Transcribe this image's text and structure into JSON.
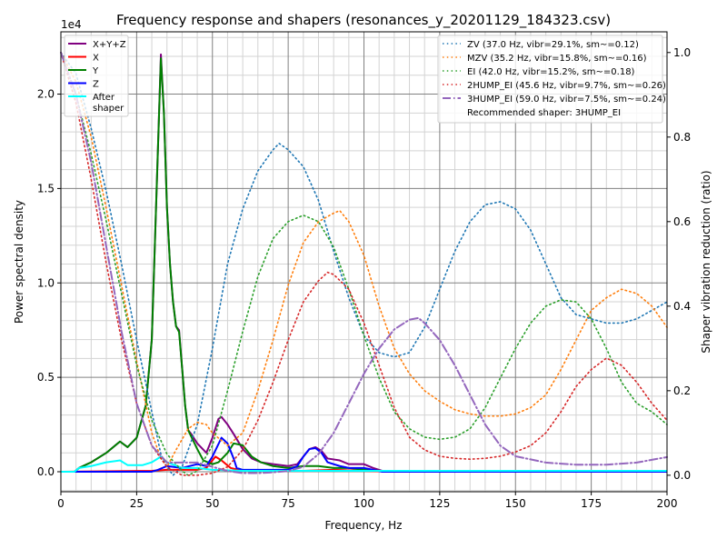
{
  "chart_data": {
    "type": "line",
    "title": "Frequency response and shapers (resonances_y_20201129_184323.csv)",
    "xlabel": "Frequency, Hz",
    "ylabel": "Power spectral density",
    "ylabel_right": "Shaper vibration reduction (ratio)",
    "y_offset_label": "1e4",
    "xlim": [
      0,
      200
    ],
    "ylim": [
      -0.106,
      2.33
    ],
    "ylim_right": [
      -0.039,
      1.049
    ],
    "grid": true,
    "x_ticks": [
      "0",
      "25",
      "50",
      "75",
      "100",
      "125",
      "150",
      "175",
      "200"
    ],
    "x_tick_values": [
      0,
      25,
      50,
      75,
      100,
      125,
      150,
      175,
      200
    ],
    "y_ticks": [
      "0.0",
      "0.5",
      "1.0",
      "1.5",
      "2.0"
    ],
    "y_tick_values": [
      0,
      0.5,
      1.0,
      1.5,
      2.0
    ],
    "y_right_ticks": [
      "0.0",
      "0.2",
      "0.4",
      "0.6",
      "0.8",
      "1.0"
    ],
    "y_right_tick_values": [
      0,
      0.2,
      0.4,
      0.6,
      0.8,
      1.0
    ],
    "legend_left_placement": "top-left",
    "legend_right_placement": "top-right",
    "psd_series": [
      {
        "name": "X+Y+Z",
        "color": "#800080",
        "x": [
          0,
          4.5,
          6,
          10,
          15,
          19.5,
          22,
          25,
          28,
          30,
          31,
          32,
          33,
          34,
          35,
          36,
          37,
          38,
          39,
          40,
          41,
          42,
          43,
          45,
          48,
          50,
          52,
          53,
          55,
          57,
          60,
          63,
          66,
          70,
          75,
          78,
          80,
          82,
          84,
          86,
          88,
          92,
          95,
          100,
          103,
          106,
          110,
          200
        ],
        "y": [
          0,
          0,
          0.02,
          0.05,
          0.1,
          0.16,
          0.13,
          0.18,
          0.35,
          0.7,
          1.2,
          1.7,
          2.21,
          1.9,
          1.4,
          1.1,
          0.9,
          0.77,
          0.75,
          0.55,
          0.35,
          0.22,
          0.2,
          0.15,
          0.1,
          0.18,
          0.28,
          0.29,
          0.25,
          0.2,
          0.12,
          0.07,
          0.05,
          0.04,
          0.03,
          0.04,
          0.08,
          0.12,
          0.13,
          0.11,
          0.07,
          0.06,
          0.04,
          0.04,
          0.02,
          0.005,
          0,
          0
        ]
      },
      {
        "name": "X",
        "color": "#ff0000",
        "x": [
          0,
          30,
          35,
          45,
          48,
          51,
          53,
          56,
          60,
          80,
          90,
          100,
          110,
          200
        ],
        "y": [
          0,
          0.005,
          0.01,
          0.01,
          0.02,
          0.08,
          0.06,
          0.02,
          0.005,
          0.005,
          0.01,
          0.005,
          0,
          0
        ]
      },
      {
        "name": "Y",
        "color": "#008000",
        "x": [
          0,
          4.5,
          6,
          10,
          15,
          19.5,
          22,
          25,
          28,
          30,
          31,
          32,
          33,
          34,
          35,
          36,
          37,
          38,
          39,
          40,
          41,
          42,
          45,
          47,
          50,
          52,
          55,
          57,
          60,
          63,
          66,
          70,
          75,
          80,
          85,
          90,
          95,
          100,
          105,
          110,
          200
        ],
        "y": [
          0,
          0,
          0.02,
          0.05,
          0.1,
          0.16,
          0.13,
          0.18,
          0.35,
          0.7,
          1.2,
          1.7,
          2.19,
          1.9,
          1.4,
          1.1,
          0.9,
          0.77,
          0.74,
          0.55,
          0.35,
          0.22,
          0.12,
          0.06,
          0.04,
          0.05,
          0.1,
          0.15,
          0.14,
          0.08,
          0.05,
          0.03,
          0.02,
          0.03,
          0.03,
          0.02,
          0.02,
          0.01,
          0.005,
          0,
          0
        ]
      },
      {
        "name": "Z",
        "color": "#0000ff",
        "x": [
          0,
          30,
          32,
          35,
          40,
          45,
          48,
          50,
          53,
          55,
          57,
          58,
          60,
          75,
          78,
          80,
          82,
          84,
          86,
          88,
          92,
          95,
          100,
          103,
          106,
          200
        ],
        "y": [
          0,
          0,
          0.01,
          0.03,
          0.02,
          0.04,
          0.03,
          0.08,
          0.18,
          0.15,
          0.07,
          0.02,
          0.01,
          0.01,
          0.03,
          0.08,
          0.12,
          0.125,
          0.1,
          0.05,
          0.03,
          0.02,
          0.02,
          0.01,
          0,
          0
        ]
      },
      {
        "name": "After\nshaper",
        "label_lines": [
          "After",
          "shaper"
        ],
        "color": "#00ffff",
        "x": [
          0,
          4.5,
          6,
          10,
          15,
          19.5,
          22,
          27,
          30,
          33,
          35,
          40,
          45,
          50,
          60,
          200
        ],
        "y": [
          0,
          0,
          0.02,
          0.03,
          0.05,
          0.06,
          0.035,
          0.035,
          0.05,
          0.08,
          0.05,
          0.02,
          0.02,
          0.01,
          0.005,
          0.005
        ]
      }
    ],
    "shaper_series": [
      {
        "name": "ZV (37.0 Hz, vibr=29.1%, sm~=0.12)",
        "color": "#1f77b4",
        "style": "dotted",
        "x": [
          0,
          5,
          10,
          15,
          20,
          25,
          30,
          33,
          35,
          37,
          40,
          45,
          50,
          55,
          60,
          65,
          70,
          72,
          75,
          80,
          85,
          90,
          95,
          100,
          105,
          110,
          115,
          120,
          125,
          130,
          135,
          140,
          145,
          150,
          155,
          160,
          165,
          170,
          175,
          180,
          185,
          190,
          195,
          200
        ],
        "y": [
          1.0,
          0.95,
          0.82,
          0.67,
          0.5,
          0.32,
          0.15,
          0.05,
          0.02,
          0.0,
          0.02,
          0.12,
          0.3,
          0.5,
          0.63,
          0.72,
          0.77,
          0.785,
          0.77,
          0.73,
          0.65,
          0.53,
          0.42,
          0.33,
          0.29,
          0.28,
          0.29,
          0.35,
          0.44,
          0.53,
          0.6,
          0.64,
          0.647,
          0.63,
          0.58,
          0.5,
          0.42,
          0.38,
          0.37,
          0.36,
          0.36,
          0.37,
          0.39,
          0.41
        ]
      },
      {
        "name": "MZV (35.2 Hz, vibr=15.8%, sm~=0.16)",
        "color": "#ff7f0e",
        "style": "dotted",
        "x": [
          0,
          5,
          10,
          15,
          20,
          25,
          30,
          33,
          35,
          38,
          42,
          45,
          48,
          50,
          55,
          60,
          65,
          70,
          75,
          80,
          85,
          90,
          92,
          95,
          100,
          105,
          110,
          115,
          120,
          125,
          130,
          135,
          140,
          145,
          150,
          155,
          160,
          165,
          170,
          175,
          180,
          185,
          190,
          195,
          200
        ],
        "y": [
          1.0,
          0.93,
          0.8,
          0.63,
          0.45,
          0.27,
          0.1,
          0.04,
          0.02,
          0.06,
          0.11,
          0.125,
          0.12,
          0.1,
          0.07,
          0.1,
          0.2,
          0.32,
          0.45,
          0.55,
          0.6,
          0.62,
          0.626,
          0.6,
          0.52,
          0.4,
          0.3,
          0.24,
          0.2,
          0.175,
          0.155,
          0.145,
          0.14,
          0.14,
          0.145,
          0.16,
          0.19,
          0.25,
          0.32,
          0.39,
          0.42,
          0.44,
          0.43,
          0.4,
          0.35
        ]
      },
      {
        "name": "EI (42.0 Hz, vibr=15.2%, sm~=0.18)",
        "color": "#2ca02c",
        "style": "dotted",
        "x": [
          0,
          5,
          10,
          15,
          20,
          25,
          30,
          35,
          40,
          42,
          45,
          50,
          55,
          60,
          65,
          70,
          75,
          80,
          85,
          90,
          95,
          100,
          105,
          110,
          115,
          120,
          125,
          130,
          135,
          140,
          145,
          150,
          155,
          160,
          165,
          170,
          175,
          180,
          185,
          190,
          195,
          200
        ],
        "y": [
          1.0,
          0.9,
          0.76,
          0.6,
          0.43,
          0.26,
          0.13,
          0.05,
          0.01,
          0.0,
          0.01,
          0.07,
          0.2,
          0.34,
          0.47,
          0.56,
          0.6,
          0.615,
          0.6,
          0.54,
          0.44,
          0.33,
          0.23,
          0.15,
          0.11,
          0.09,
          0.085,
          0.09,
          0.11,
          0.16,
          0.23,
          0.3,
          0.36,
          0.4,
          0.415,
          0.41,
          0.37,
          0.3,
          0.22,
          0.17,
          0.15,
          0.12
        ]
      },
      {
        "name": "2HUMP_EI (45.6 Hz, vibr=9.7%, sm~=0.26)",
        "color": "#d62728",
        "style": "dotted",
        "x": [
          0,
          5,
          10,
          15,
          20,
          25,
          30,
          35,
          40,
          45,
          50,
          55,
          60,
          65,
          70,
          75,
          80,
          85,
          88,
          90,
          95,
          100,
          105,
          110,
          115,
          120,
          125,
          130,
          135,
          140,
          145,
          150,
          155,
          160,
          165,
          170,
          175,
          180,
          185,
          190,
          195,
          200
        ],
        "y": [
          1.0,
          0.88,
          0.7,
          0.5,
          0.32,
          0.17,
          0.07,
          0.02,
          0.0,
          0.0,
          0.005,
          0.02,
          0.06,
          0.13,
          0.22,
          0.32,
          0.41,
          0.46,
          0.48,
          0.475,
          0.44,
          0.36,
          0.26,
          0.16,
          0.09,
          0.06,
          0.045,
          0.04,
          0.038,
          0.04,
          0.045,
          0.055,
          0.07,
          0.1,
          0.15,
          0.21,
          0.25,
          0.277,
          0.26,
          0.22,
          0.17,
          0.13
        ]
      },
      {
        "name": "3HUMP_EI (59.0 Hz, vibr=7.5%, sm~=0.24)",
        "color": "#9467bd",
        "style": "dashdot",
        "x": [
          0,
          5,
          10,
          15,
          20,
          25,
          30,
          35,
          40,
          45,
          50,
          55,
          60,
          65,
          70,
          75,
          80,
          85,
          90,
          95,
          100,
          105,
          110,
          115,
          118,
          120,
          125,
          130,
          135,
          140,
          145,
          150,
          160,
          170,
          180,
          190,
          200
        ],
        "y": [
          1.0,
          0.9,
          0.74,
          0.54,
          0.34,
          0.17,
          0.07,
          0.03,
          0.03,
          0.03,
          0.02,
          0.01,
          0.005,
          0.005,
          0.007,
          0.01,
          0.02,
          0.05,
          0.1,
          0.17,
          0.24,
          0.3,
          0.345,
          0.368,
          0.372,
          0.36,
          0.32,
          0.26,
          0.19,
          0.12,
          0.07,
          0.045,
          0.03,
          0.025,
          0.025,
          0.03,
          0.043
        ]
      }
    ],
    "recommendation": "Recommended shaper: 3HUMP_EI"
  }
}
